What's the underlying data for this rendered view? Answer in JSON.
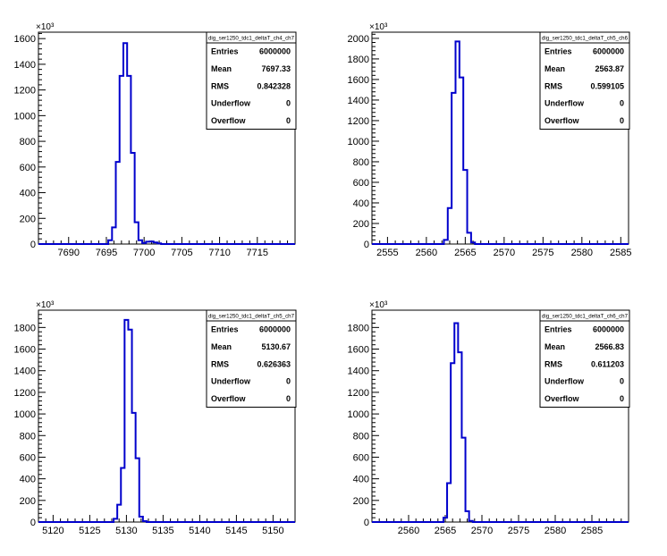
{
  "chart_data": [
    {
      "type": "bar",
      "title": "dig_ser1250_tdc1_deltaT_ch4_ch7",
      "xlim": [
        7686,
        7720
      ],
      "ylim": [
        0,
        1650
      ],
      "y_multiplier_label": "×10³",
      "xticks": [
        7690,
        7695,
        7700,
        7705,
        7710,
        7715
      ],
      "yticks": [
        0,
        200,
        400,
        600,
        800,
        1000,
        1200,
        1400,
        1600
      ],
      "bin_width": 0.5,
      "bins": [
        {
          "x": 7695.5,
          "value": 30
        },
        {
          "x": 7696.0,
          "value": 130
        },
        {
          "x": 7696.5,
          "value": 640
        },
        {
          "x": 7697.0,
          "value": 1310
        },
        {
          "x": 7697.5,
          "value": 1565
        },
        {
          "x": 7698.0,
          "value": 1310
        },
        {
          "x": 7698.5,
          "value": 710
        },
        {
          "x": 7699.0,
          "value": 170
        },
        {
          "x": 7699.5,
          "value": 30
        },
        {
          "x": 7700.0,
          "value": 8
        },
        {
          "x": 7700.5,
          "value": 18
        },
        {
          "x": 7701.0,
          "value": 20
        },
        {
          "x": 7701.5,
          "value": 12
        },
        {
          "x": 7702.0,
          "value": 5
        }
      ],
      "stats": [
        {
          "label": "Entries",
          "value": "6000000"
        },
        {
          "label": "Mean",
          "value": "7697.33"
        },
        {
          "label": "RMS",
          "value": "0.842328"
        },
        {
          "label": "Underflow",
          "value": "0"
        },
        {
          "label": "Overflow",
          "value": "0"
        }
      ]
    },
    {
      "type": "bar",
      "title": "dig_ser1250_tdc1_deltaT_ch5_ch6",
      "xlim": [
        2553,
        2586
      ],
      "ylim": [
        0,
        2060
      ],
      "y_multiplier_label": "×10³",
      "xticks": [
        2555,
        2560,
        2565,
        2570,
        2575,
        2580,
        2585
      ],
      "yticks": [
        0,
        200,
        400,
        600,
        800,
        1000,
        1200,
        1400,
        1600,
        1800,
        2000
      ],
      "bin_width": 0.5,
      "bins": [
        {
          "x": 2562.5,
          "value": 40
        },
        {
          "x": 2563.0,
          "value": 350
        },
        {
          "x": 2563.5,
          "value": 1470
        },
        {
          "x": 2564.0,
          "value": 1970
        },
        {
          "x": 2564.5,
          "value": 1620
        },
        {
          "x": 2565.0,
          "value": 720
        },
        {
          "x": 2565.5,
          "value": 110
        },
        {
          "x": 2566.0,
          "value": 15
        }
      ],
      "stats": [
        {
          "label": "Entries",
          "value": "6000000"
        },
        {
          "label": "Mean",
          "value": "2563.87"
        },
        {
          "label": "RMS",
          "value": "0.599105"
        },
        {
          "label": "Underflow",
          "value": "0"
        },
        {
          "label": "Overflow",
          "value": "0"
        }
      ]
    },
    {
      "type": "bar",
      "title": "dig_ser1250_tdc1_deltaT_ch5_ch7",
      "xlim": [
        5118,
        5153
      ],
      "ylim": [
        0,
        1960
      ],
      "y_multiplier_label": "×10³",
      "xticks": [
        5120,
        5125,
        5130,
        5135,
        5140,
        5145,
        5150
      ],
      "yticks": [
        0,
        200,
        400,
        600,
        800,
        1000,
        1200,
        1400,
        1600,
        1800
      ],
      "bin_width": 0.5,
      "bins": [
        {
          "x": 5128.5,
          "value": 30
        },
        {
          "x": 5129.0,
          "value": 160
        },
        {
          "x": 5129.5,
          "value": 500
        },
        {
          "x": 5130.0,
          "value": 1870
        },
        {
          "x": 5130.5,
          "value": 1780
        },
        {
          "x": 5131.0,
          "value": 1010
        },
        {
          "x": 5131.5,
          "value": 590
        },
        {
          "x": 5132.0,
          "value": 50
        },
        {
          "x": 5132.5,
          "value": 8
        }
      ],
      "stats": [
        {
          "label": "Entries",
          "value": "6000000"
        },
        {
          "label": "Mean",
          "value": "5130.67"
        },
        {
          "label": "RMS",
          "value": "0.626363"
        },
        {
          "label": "Underflow",
          "value": "0"
        },
        {
          "label": "Overflow",
          "value": "0"
        }
      ]
    },
    {
      "type": "bar",
      "title": "dig_ser1250_tdc1_deltaT_ch6_ch7",
      "xlim": [
        2555,
        2590
      ],
      "ylim": [
        0,
        1960
      ],
      "y_multiplier_label": "×10³",
      "xticks": [
        2560,
        2565,
        2570,
        2575,
        2580,
        2585
      ],
      "yticks": [
        0,
        200,
        400,
        600,
        800,
        1000,
        1200,
        1400,
        1600,
        1800
      ],
      "bin_width": 0.5,
      "bins": [
        {
          "x": 2565.0,
          "value": 40
        },
        {
          "x": 2565.5,
          "value": 360
        },
        {
          "x": 2566.0,
          "value": 1470
        },
        {
          "x": 2566.5,
          "value": 1840
        },
        {
          "x": 2567.0,
          "value": 1570
        },
        {
          "x": 2567.5,
          "value": 780
        },
        {
          "x": 2568.0,
          "value": 100
        },
        {
          "x": 2568.5,
          "value": 10
        }
      ],
      "stats": [
        {
          "label": "Entries",
          "value": "6000000"
        },
        {
          "label": "Mean",
          "value": "2566.83"
        },
        {
          "label": "RMS",
          "value": "0.611203"
        },
        {
          "label": "Underflow",
          "value": "0"
        },
        {
          "label": "Overflow",
          "value": "0"
        }
      ]
    }
  ]
}
